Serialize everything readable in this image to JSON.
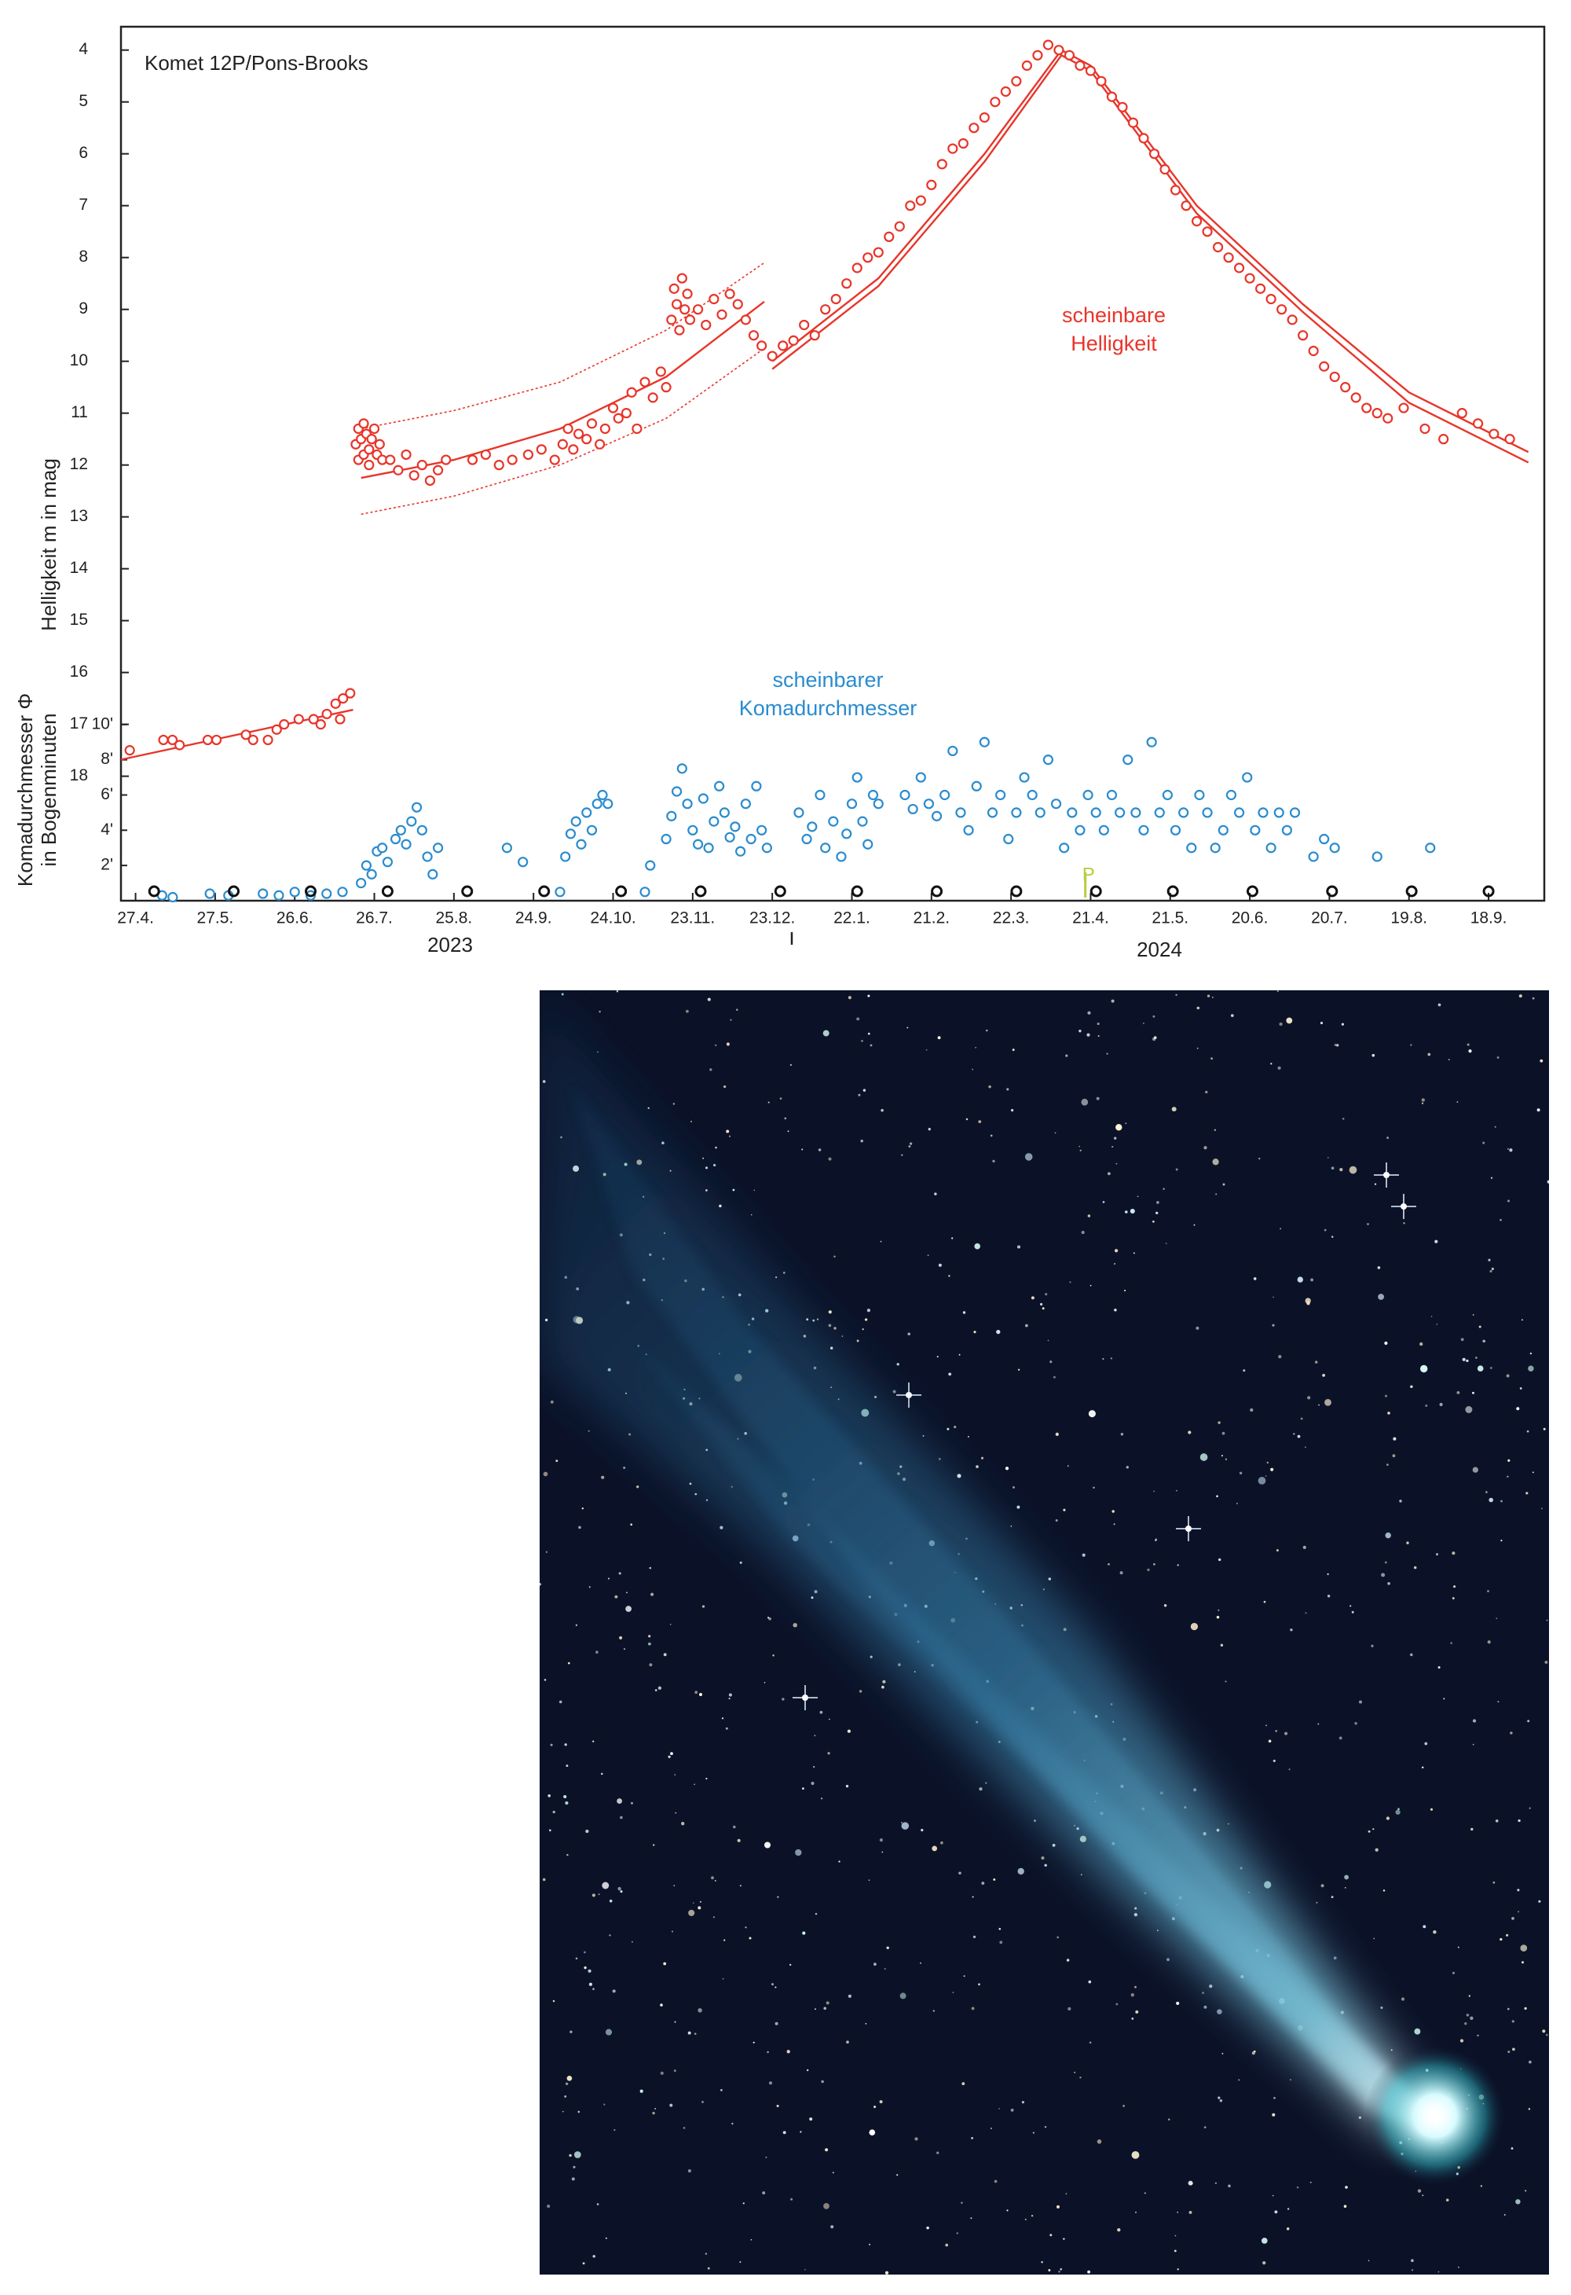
{
  "chart_data": {
    "type": "scatter",
    "title": "Komet 12P/Pons-Brooks",
    "y_label": "Helligkeit m in mag",
    "y2_label": [
      "Komadurchmesser Φ",
      "in Bogenminuten"
    ],
    "annotations": [
      {
        "lines": [
          "scheinbare",
          "Helligkeit"
        ],
        "color": "#e8352a"
      },
      {
        "lines": [
          "scheinbarer",
          "Komadurchmesser"
        ],
        "color": "#2a8ccf"
      }
    ],
    "year_labels": [
      "2023",
      "2024"
    ],
    "xlim": [
      -5.5,
      531
    ],
    "xticks": [
      {
        "value": 0,
        "label": "27.4."
      },
      {
        "value": 30,
        "label": "27.5."
      },
      {
        "value": 60,
        "label": "26.6."
      },
      {
        "value": 90,
        "label": "26.7."
      },
      {
        "value": 120,
        "label": "25.8."
      },
      {
        "value": 150,
        "label": "24.9."
      },
      {
        "value": 180,
        "label": "24.10."
      },
      {
        "value": 210,
        "label": "23.11."
      },
      {
        "value": 240,
        "label": "23.12."
      },
      {
        "value": 270,
        "label": "22.1."
      },
      {
        "value": 300,
        "label": "21.2."
      },
      {
        "value": 330,
        "label": "22.3."
      },
      {
        "value": 360,
        "label": "21.4."
      },
      {
        "value": 390,
        "label": "21.5."
      },
      {
        "value": 420,
        "label": "20.6."
      },
      {
        "value": 450,
        "label": "20.7."
      },
      {
        "value": 480,
        "label": "19.8."
      },
      {
        "value": 510,
        "label": "18.9."
      }
    ],
    "ylim": [
      20.4,
      3.55
    ],
    "yticks": [
      4,
      5,
      6,
      7,
      8,
      9,
      10,
      11,
      12,
      13,
      14,
      15,
      16,
      17,
      18
    ],
    "y2lim": [
      0,
      49.6
    ],
    "y2ticks": [
      {
        "value": 2,
        "label": "2'"
      },
      {
        "value": 4,
        "label": "4'"
      },
      {
        "value": 6,
        "label": "6'"
      },
      {
        "value": 8,
        "label": "8'"
      },
      {
        "value": 10,
        "label": "10'"
      }
    ],
    "series": [
      {
        "kind": "line",
        "style": "solid",
        "color": "#e8352a",
        "x": [
          -5.5,
          82
        ],
        "values": [
          17.68,
          16.72
        ]
      },
      {
        "kind": "line",
        "style": "solid",
        "color": "#e8352a",
        "x": [
          85,
          120,
          160,
          200,
          237
        ],
        "values": [
          12.25,
          11.9,
          11.3,
          10.3,
          8.85
        ]
      },
      {
        "kind": "line",
        "style": "dotted",
        "color": "#e8352a",
        "x": [
          85,
          120,
          160,
          200,
          237
        ],
        "values": [
          11.3,
          10.95,
          10.4,
          9.4,
          8.1
        ]
      },
      {
        "kind": "line",
        "style": "dotted",
        "color": "#e8352a",
        "x": [
          85,
          120,
          160,
          200,
          237
        ],
        "values": [
          12.95,
          12.6,
          12,
          11.1,
          9.75
        ]
      },
      {
        "kind": "line",
        "style": "solid",
        "color": "#e8352a",
        "x": [
          240,
          280,
          320,
          349,
          360,
          400,
          440,
          480,
          525
        ],
        "values": [
          10,
          8.4,
          6,
          4,
          4.3,
          7,
          8.9,
          10.6,
          11.75
        ]
      },
      {
        "kind": "line",
        "style": "solid",
        "color": "#e8352a",
        "x": [
          240,
          280,
          320,
          349,
          360,
          400,
          440,
          480,
          525
        ],
        "values": [
          10.15,
          8.55,
          6.15,
          4.1,
          4.4,
          7.15,
          9.05,
          10.8,
          11.95
        ]
      },
      {
        "kind": "points",
        "color": "#e8352a",
        "x": [
          -2.2,
          10.5,
          13.9,
          16.6,
          27.2,
          30.5,
          41.6,
          44.3,
          49.9,
          53.2,
          56,
          61.5,
          67.1,
          69.8,
          72.1,
          75.4,
          78.2,
          80.9,
          77.1,
          83,
          84,
          84,
          85,
          86,
          86,
          87,
          88,
          88,
          89,
          90,
          91,
          92,
          93,
          96,
          99,
          102,
          105,
          108,
          111,
          114,
          117,
          127,
          132,
          137,
          142,
          148,
          153,
          158,
          161,
          163,
          165,
          167,
          170,
          172,
          175,
          177,
          180,
          182,
          185,
          187,
          189,
          192,
          195,
          198,
          200,
          202,
          203,
          204,
          205,
          206,
          207,
          208,
          209,
          212,
          215,
          218,
          221,
          224,
          227,
          230,
          233,
          236,
          240,
          244,
          248,
          252,
          256,
          260,
          264,
          268,
          272,
          276,
          280,
          284,
          288,
          292,
          296,
          300,
          304,
          308,
          312,
          316,
          320,
          324,
          328,
          332,
          336,
          340,
          344,
          348,
          352,
          356,
          360,
          364,
          368,
          372,
          376,
          380,
          384,
          388,
          392,
          396,
          400,
          404,
          408,
          412,
          416,
          420,
          424,
          428,
          432,
          436,
          440,
          444,
          448,
          452,
          456,
          460,
          464,
          468,
          472,
          478,
          486,
          493,
          500,
          506,
          512,
          518
        ],
        "values": [
          17.5,
          17.3,
          17.3,
          17.4,
          17.3,
          17.3,
          17.2,
          17.3,
          17.3,
          17.1,
          17,
          16.9,
          16.9,
          17,
          16.8,
          16.6,
          16.5,
          16.4,
          16.9,
          11.6,
          11.3,
          11.9,
          11.5,
          11.8,
          11.2,
          11.4,
          11.7,
          12,
          11.5,
          11.3,
          11.8,
          11.6,
          11.9,
          11.9,
          12.1,
          11.8,
          12.2,
          12,
          12.3,
          12.1,
          11.9,
          11.9,
          11.8,
          12,
          11.9,
          11.8,
          11.7,
          11.9,
          11.6,
          11.3,
          11.7,
          11.4,
          11.5,
          11.2,
          11.6,
          11.3,
          10.9,
          11.1,
          11,
          10.6,
          11.3,
          10.4,
          10.7,
          10.2,
          10.5,
          9.2,
          8.6,
          8.9,
          9.4,
          8.4,
          9,
          8.7,
          9.2,
          9,
          9.3,
          8.8,
          9.1,
          8.7,
          8.9,
          9.2,
          9.5,
          9.7,
          9.9,
          9.7,
          9.6,
          9.3,
          9.5,
          9,
          8.8,
          8.5,
          8.2,
          8,
          7.9,
          7.6,
          7.4,
          7,
          6.9,
          6.6,
          6.2,
          5.9,
          5.8,
          5.5,
          5.3,
          5,
          4.8,
          4.6,
          4.3,
          4.1,
          3.9,
          4,
          4.1,
          4.3,
          4.4,
          4.6,
          4.9,
          5.1,
          5.4,
          5.7,
          6,
          6.3,
          6.7,
          7,
          7.3,
          7.5,
          7.8,
          8,
          8.2,
          8.4,
          8.6,
          8.8,
          9,
          9.2,
          9.5,
          9.8,
          10.1,
          10.3,
          10.5,
          10.7,
          10.9,
          11,
          11.1,
          10.9,
          11.3,
          11.5,
          11,
          11.2,
          11.4,
          11.5
        ]
      },
      {
        "kind": "points",
        "axis": "y2",
        "color": "#2a8ccf",
        "x": [
          10,
          14,
          28,
          35,
          48,
          54,
          60,
          66,
          72,
          78,
          85,
          87,
          89,
          91,
          93,
          95,
          98,
          100,
          102,
          104,
          106,
          108,
          110,
          112,
          114,
          140,
          146,
          160,
          162,
          164,
          166,
          168,
          170,
          172,
          174,
          176,
          178,
          192,
          194,
          200,
          202,
          204,
          206,
          208,
          210,
          212,
          214,
          216,
          218,
          220,
          222,
          224,
          226,
          228,
          230,
          232,
          234,
          236,
          238,
          250,
          253,
          255,
          258,
          260,
          263,
          266,
          268,
          270,
          272,
          274,
          276,
          278,
          280,
          290,
          293,
          296,
          299,
          302,
          305,
          308,
          311,
          314,
          317,
          320,
          323,
          326,
          329,
          332,
          335,
          338,
          341,
          344,
          347,
          350,
          353,
          356,
          359,
          362,
          365,
          368,
          371,
          374,
          377,
          380,
          383,
          386,
          389,
          392,
          395,
          398,
          401,
          404,
          407,
          410,
          413,
          416,
          419,
          422,
          425,
          428,
          431,
          434,
          437,
          444,
          448,
          452,
          468,
          488
        ],
        "values": [
          0.3,
          0.2,
          0.4,
          0.3,
          0.4,
          0.3,
          0.5,
          0.3,
          0.4,
          0.5,
          1,
          2,
          1.5,
          2.8,
          3,
          2.2,
          3.5,
          4,
          3.2,
          4.5,
          5.3,
          4,
          2.5,
          1.5,
          3,
          3,
          2.2,
          0.5,
          2.5,
          3.8,
          4.5,
          3.2,
          5,
          4,
          5.5,
          6,
          5.5,
          0.5,
          2,
          3.5,
          4.8,
          6.2,
          7.5,
          5.5,
          4,
          3.2,
          5.8,
          3,
          4.5,
          6.5,
          5,
          3.6,
          4.2,
          2.8,
          5.5,
          3.5,
          6.5,
          4,
          3,
          5,
          3.5,
          4.2,
          6,
          3,
          4.5,
          2.5,
          3.8,
          5.5,
          7,
          4.5,
          3.2,
          6,
          5.5,
          6,
          5.2,
          7,
          5.5,
          4.8,
          6,
          8.5,
          5,
          4,
          6.5,
          9,
          5,
          6,
          3.5,
          5,
          7,
          6,
          5,
          8,
          5.5,
          3,
          5,
          4,
          6,
          5,
          4,
          6,
          5,
          8,
          5,
          4,
          9,
          5,
          6,
          4,
          5,
          3,
          6,
          5,
          3,
          4,
          6,
          5,
          7,
          4,
          5,
          3,
          5,
          4,
          5,
          2.5,
          3.5,
          3,
          2.5,
          3
        ]
      }
    ],
    "markers": {
      "color": "#111111",
      "x": [
        7,
        37,
        66,
        95,
        125,
        154,
        183,
        213,
        243,
        272,
        302,
        332,
        362,
        391,
        421,
        451,
        481,
        510
      ]
    },
    "perihelion": {
      "x": 358,
      "label": "P",
      "color": "#b9cc3c"
    }
  }
}
